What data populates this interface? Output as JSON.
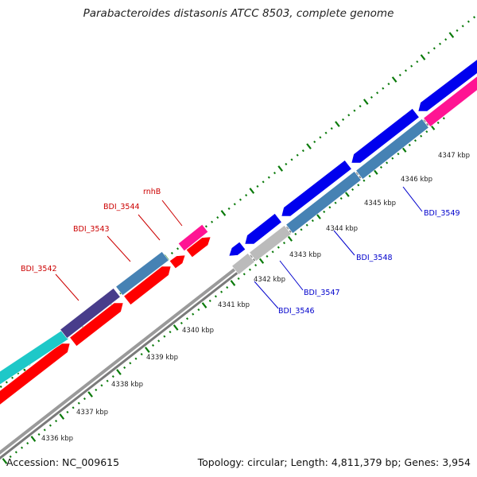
{
  "title": "Parabacteroides distasonis ATCC 8503, complete genome",
  "accession": "Accession: NC_009615",
  "summary": "Topology: circular; Length: 4,811,379 bp; Genes: 3,954",
  "colors": {
    "backbone": "#808080",
    "tick_green": "#0a7a0a",
    "forward_label": "#cc0000",
    "reverse_label": "#0000cc",
    "red": "#ff0000",
    "blue": "#0000ee",
    "steelblue": "#4682b4",
    "darkslate": "#483d8b",
    "cyan": "#1ec8c8",
    "magenta": "#ff1493",
    "grey": "#bbbbbb"
  },
  "ticks": [
    "4336 kbp",
    "4337 kbp",
    "4338 kbp",
    "4339 kbp",
    "4340 kbp",
    "4341 kbp",
    "4342 kbp",
    "4343 kbp",
    "4344 kbp",
    "4345 kbp",
    "4346 kbp",
    "4347 kbp"
  ],
  "gene_labels": {
    "upper": [
      "BDI_3542",
      "BDI_3543",
      "BDI_3544",
      "rnhB"
    ],
    "lower": [
      "BDI_3546",
      "BDI_3547",
      "BDI_3548",
      "BDI_3549"
    ]
  }
}
